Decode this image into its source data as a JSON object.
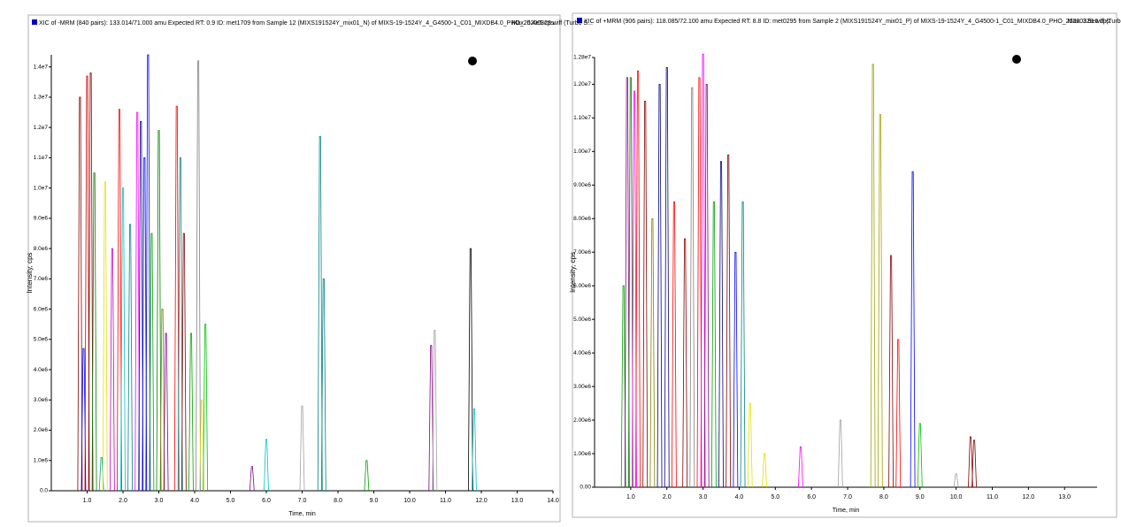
{
  "chart_data": [
    {
      "type": "chromatogram",
      "title": "XIC of -MRM (840 pairs): 133.014/71.000 amu Expected RT: 0.9 ID: met1709 from Sample 12 (MIXS191524Y_mix01_N) of MIXS-19-1524Y_4_G4500-1_C01_MIXDB4.0_PHO_20200323.wiff (Turbo S...",
      "max_label": "Max. 5.4e5 cps.",
      "x_label": "Time, min",
      "y_label": "Intensity, cps",
      "xlim": [
        0,
        14
      ],
      "ylim": [
        0,
        14400000
      ],
      "xticks": [
        {
          "value": 1,
          "label": "1.0"
        },
        {
          "value": 2,
          "label": "2.0"
        },
        {
          "value": 3,
          "label": "3.0"
        },
        {
          "value": 4,
          "label": "4.0"
        },
        {
          "value": 5,
          "label": "5.0"
        },
        {
          "value": 6,
          "label": "6.0"
        },
        {
          "value": 7,
          "label": "7.0"
        },
        {
          "value": 8,
          "label": "8.0"
        },
        {
          "value": 9,
          "label": "9.0"
        },
        {
          "value": 10,
          "label": "10.0"
        },
        {
          "value": 11,
          "label": "11.0"
        },
        {
          "value": 12,
          "label": "12.0"
        },
        {
          "value": 13,
          "label": "13.0"
        },
        {
          "value": 14,
          "label": "14.0"
        }
      ],
      "yticks": [
        {
          "value": 0,
          "label": "0.0"
        },
        {
          "value": 1000000,
          "label": "1.0e6"
        },
        {
          "value": 2000000,
          "label": "2.0e6"
        },
        {
          "value": 3000000,
          "label": "3.0e6"
        },
        {
          "value": 4000000,
          "label": "4.0e6"
        },
        {
          "value": 5000000,
          "label": "5.0e6"
        },
        {
          "value": 6000000,
          "label": "6.0e6"
        },
        {
          "value": 7000000,
          "label": "7.0e6"
        },
        {
          "value": 8000000,
          "label": "8.0e6"
        },
        {
          "value": 9000000,
          "label": "9.0e6"
        },
        {
          "value": 10000000,
          "label": "1.0e7"
        },
        {
          "value": 11000000,
          "label": "1.1e7"
        },
        {
          "value": 12000000,
          "label": "1.2e7"
        },
        {
          "value": 13000000,
          "label": "1.3e7"
        },
        {
          "value": 14000000,
          "label": "1.4e7"
        }
      ],
      "x": [
        0.8,
        0.9,
        1.0,
        1.1,
        1.2,
        1.4,
        1.5,
        1.7,
        1.9,
        2.0,
        2.2,
        2.4,
        2.5,
        2.6,
        2.7,
        2.8,
        3.0,
        3.1,
        3.2,
        3.5,
        3.6,
        3.7,
        3.9,
        4.1,
        4.2,
        4.3,
        5.6,
        6.0,
        7.0,
        7.5,
        7.6,
        8.8,
        10.6,
        10.7,
        11.7,
        11.8
      ],
      "values": [
        13000000,
        4700000,
        13700000,
        13800000,
        10500000,
        1100000,
        10200000,
        8000000,
        12600000,
        10000000,
        8800000,
        12500000,
        12200000,
        11000000,
        14400000,
        8500000,
        11900000,
        6000000,
        5200000,
        12700000,
        11000000,
        8500000,
        5200000,
        14200000,
        3000000,
        5500000,
        800000,
        1700000,
        2800000,
        11700000,
        7000000,
        1000000,
        4800000,
        5300000,
        8000000,
        2700000
      ],
      "colors": [
        "#800000",
        "#0000ff",
        "#c00000",
        "#800000",
        "#008000",
        "#00a0a0",
        "#e0e000",
        "#c000c0",
        "#ff0000",
        "#00c0c0",
        "#008080",
        "#ff00ff",
        "#000080",
        "#0000ff",
        "#0000ff",
        "#00a000",
        "#008000",
        "#808000",
        "#800080",
        "#ff0000",
        "#008080",
        "#800000",
        "#00a000",
        "#808080",
        "#e0e000",
        "#00c000",
        "#800080",
        "#00c0c0",
        "#a0a0a0",
        "#008080",
        "#008080",
        "#00a000",
        "#800080",
        "#a0a0a0",
        "#000000",
        "#00c0c0"
      ]
    },
    {
      "type": "chromatogram",
      "title": "XIC of +MRM (906 pairs): 118.085/72.100 amu Expected RT: 8.8 ID: met0295 from Sample 2 (MIXS191524Y_mix01_P) of MIXS-19-1524Y_4_G4500-1_C01_MIXDB4.0_PHO_20200323.wiff (Turbo S...",
      "max_label": "Max. 3.9e6 cps.",
      "x_label": "Time, min",
      "y_label": "Intensity, cps",
      "xlim": [
        0,
        13.9
      ],
      "ylim": [
        0,
        12800000
      ],
      "xticks": [
        {
          "value": 1,
          "label": "1.0"
        },
        {
          "value": 2,
          "label": "2.0"
        },
        {
          "value": 3,
          "label": "3.0"
        },
        {
          "value": 4,
          "label": "4.0"
        },
        {
          "value": 5,
          "label": "5.0"
        },
        {
          "value": 6,
          "label": "6.0"
        },
        {
          "value": 7,
          "label": "7.0"
        },
        {
          "value": 8,
          "label": "8.0"
        },
        {
          "value": 9,
          "label": "9.0"
        },
        {
          "value": 10,
          "label": "10.0"
        },
        {
          "value": 11,
          "label": "11.0"
        },
        {
          "value": 12,
          "label": "12.0"
        },
        {
          "value": 13,
          "label": "13.0"
        }
      ],
      "yticks": [
        {
          "value": 0,
          "label": "0.00"
        },
        {
          "value": 1000000,
          "label": "1.00e6"
        },
        {
          "value": 2000000,
          "label": "2.00e6"
        },
        {
          "value": 3000000,
          "label": "3.00e6"
        },
        {
          "value": 4000000,
          "label": "4.00e6"
        },
        {
          "value": 5000000,
          "label": "5.00e6"
        },
        {
          "value": 6000000,
          "label": "6.00e6"
        },
        {
          "value": 7000000,
          "label": "7.00e6"
        },
        {
          "value": 8000000,
          "label": "8.00e6"
        },
        {
          "value": 9000000,
          "label": "9.00e6"
        },
        {
          "value": 10000000,
          "label": "1.00e7"
        },
        {
          "value": 11000000,
          "label": "1.10e7"
        },
        {
          "value": 12000000,
          "label": "1.20e7"
        },
        {
          "value": 12800000,
          "label": "1.28e7"
        }
      ],
      "x": [
        0.8,
        0.9,
        1.0,
        1.1,
        1.2,
        1.4,
        1.6,
        1.8,
        2.0,
        2.2,
        2.5,
        2.7,
        2.9,
        3.0,
        3.1,
        3.3,
        3.5,
        3.7,
        3.9,
        4.1,
        4.3,
        4.7,
        5.7,
        6.8,
        7.7,
        7.9,
        8.2,
        8.4,
        8.8,
        9.0,
        10.0,
        10.4,
        10.5
      ],
      "values": [
        6000000,
        12200000,
        12200000,
        11800000,
        12400000,
        11500000,
        8000000,
        12000000,
        12500000,
        8500000,
        7400000,
        11900000,
        12200000,
        12900000,
        12000000,
        8500000,
        9700000,
        9900000,
        7000000,
        8500000,
        2500000,
        1000000,
        1200000,
        2000000,
        12600000,
        11100000,
        6900000,
        4400000,
        9400000,
        1900000,
        400000,
        1500000,
        1400000
      ],
      "colors": [
        "#00a000",
        "#800080",
        "#008000",
        "#ff00ff",
        "#ff0000",
        "#800000",
        "#808000",
        "#000080",
        "#000080",
        "#ff0000",
        "#800000",
        "#808080",
        "#ff0000",
        "#ff00ff",
        "#800080",
        "#00a000",
        "#000080",
        "#800000",
        "#0000ff",
        "#008080",
        "#e0e000",
        "#e0e000",
        "#ff00ff",
        "#a0a0a0",
        "#a0a000",
        "#a0a000",
        "#800000",
        "#ff0000",
        "#0000ff",
        "#00c000",
        "#a0a0a0",
        "#800000",
        "#800000"
      ]
    }
  ]
}
